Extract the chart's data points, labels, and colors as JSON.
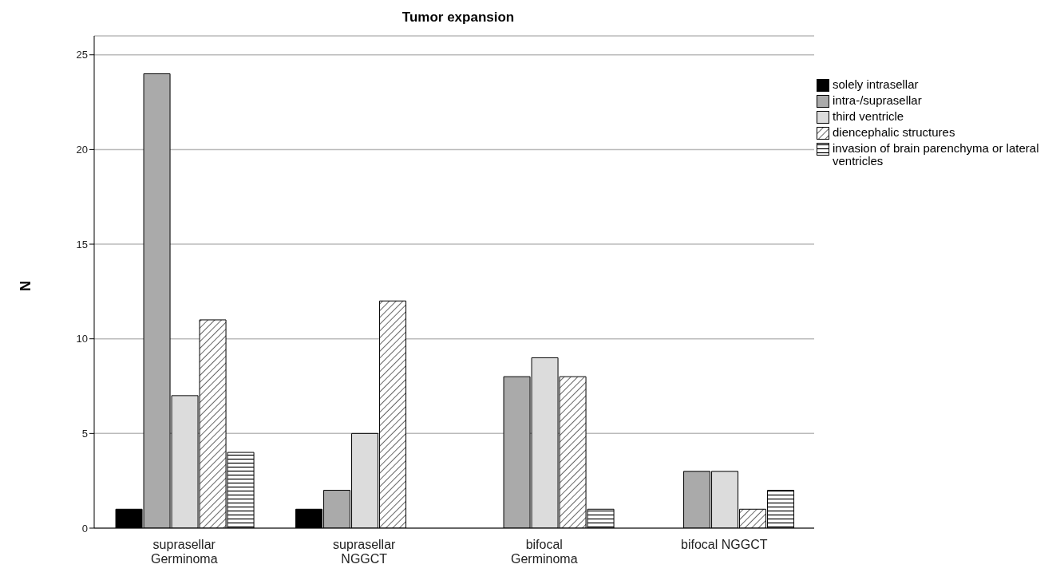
{
  "chart_data": {
    "type": "bar",
    "title": "Tumor expansion",
    "ylabel": "N",
    "categories": [
      "suprasellar Germinoma",
      "suprasellar NGGCT",
      "bifocal Germinoma",
      "bifocal NGGCT"
    ],
    "series": [
      {
        "name": "solely intrasellar",
        "color": "#000000",
        "values": [
          1,
          1,
          0,
          0
        ]
      },
      {
        "name": "intra-/suprasellar",
        "color": "#aaaaaa",
        "values": [
          24,
          2,
          8,
          3
        ]
      },
      {
        "name": "third ventricle",
        "color": "#dcdcdc",
        "values": [
          7,
          5,
          9,
          3
        ]
      },
      {
        "name": "diencephalic structures",
        "color": "#000000",
        "values": [
          11,
          12,
          8,
          1
        ]
      },
      {
        "name": "invasion of brain parenchyma or lateral ventricles",
        "color": "#000000",
        "values": [
          4,
          0,
          1,
          2
        ]
      }
    ],
    "ylim": [
      0,
      26
    ],
    "yticks": [
      0,
      5,
      10,
      15,
      20,
      25
    ],
    "grid": "y",
    "legend": "right"
  }
}
